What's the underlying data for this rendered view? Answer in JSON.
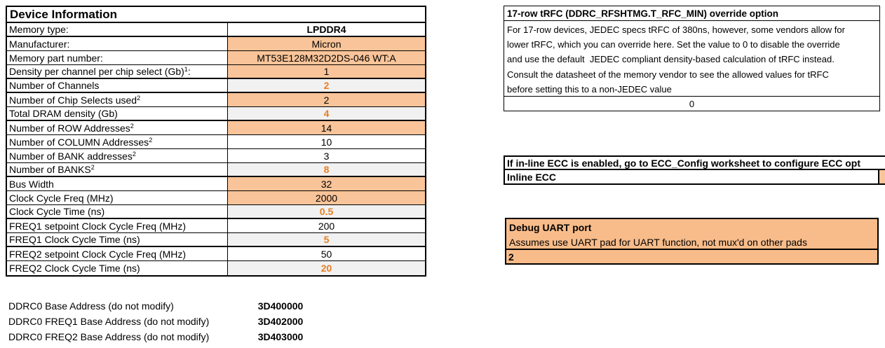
{
  "colors": {
    "orange_fill": "#F9C499",
    "orange_fill_deep": "#F8BC8A",
    "gray_fill": "#F1F1F1",
    "orange_text": "#E87E22",
    "border": "#000000"
  },
  "device_table": {
    "title": "Device Information",
    "rows": [
      {
        "label": "Memory type:",
        "value": "LPDDR4",
        "bg": "white",
        "style": "bold",
        "thick": true
      },
      {
        "label": "Manufacturer:",
        "value": "Micron",
        "bg": "orange",
        "style": "normal",
        "thick": false
      },
      {
        "label": "Memory part number:",
        "value": "MT53E128M32D2DS-046 WT:A",
        "bg": "orange",
        "style": "normal",
        "thick": false
      },
      {
        "label": "Density per channel per chip select (Gb)",
        "sup": "1",
        "suffix": ":",
        "value": "1",
        "bg": "orange",
        "style": "normal",
        "thick": true
      },
      {
        "label": "Number of Channels",
        "value": "2",
        "bg": "gray",
        "style": "orange-bold",
        "thick": true
      },
      {
        "label": "Number of Chip Selects used",
        "sup": "2",
        "value": "2",
        "bg": "orange",
        "style": "normal",
        "thick": false
      },
      {
        "label": "Total DRAM density (Gb)",
        "value": "4",
        "bg": "gray",
        "style": "orange-bold",
        "thick": true
      },
      {
        "label": "Number of ROW Addresses",
        "sup": "2",
        "value": "14",
        "bg": "orange",
        "style": "normal",
        "thick": false
      },
      {
        "label": "Number of COLUMN Addresses",
        "sup": "2",
        "value": "10",
        "bg": "white",
        "style": "normal",
        "thick": false
      },
      {
        "label": "Number of BANK addresses",
        "sup": "2",
        "value": "3",
        "bg": "white",
        "style": "normal",
        "thick": false
      },
      {
        "label": "Number of BANKS",
        "sup": "2",
        "value": "8",
        "bg": "gray",
        "style": "orange-bold",
        "thick": true
      },
      {
        "label": "Bus Width",
        "value": "32",
        "bg": "orange",
        "style": "normal",
        "thick": false
      },
      {
        "label": "Clock Cycle Freq (MHz)",
        "value": "2000",
        "bg": "orange",
        "style": "normal",
        "thick": false
      },
      {
        "label": "Clock Cycle Time (ns)",
        "value": "0.5",
        "bg": "gray",
        "style": "orange-bold",
        "thick": true
      },
      {
        "label": "FREQ1 setpoint Clock Cycle Freq (MHz)",
        "value": "200",
        "bg": "white",
        "style": "normal",
        "thick": false
      },
      {
        "label": "FREQ1 Clock Cycle Time (ns)",
        "value": "5",
        "bg": "gray",
        "style": "orange-bold",
        "thick": true
      },
      {
        "label": "FREQ2 setpoint Clock Cycle Freq (MHz)",
        "value": "50",
        "bg": "white",
        "style": "normal",
        "thick": false
      },
      {
        "label": "FREQ2 Clock Cycle Time (ns)",
        "value": "20",
        "bg": "gray",
        "style": "orange-bold",
        "thick": true
      }
    ]
  },
  "base_addresses": [
    {
      "label": "DDRC0 Base Address (do not modify)",
      "value": "3D400000"
    },
    {
      "label": "DDRC0 FREQ1 Base Address (do not modify)",
      "value": "3D402000"
    },
    {
      "label": "DDRC0 FREQ2 Base Address (do not modify)",
      "value": "3D403000"
    }
  ],
  "trfc_panel": {
    "title": "17-row tRFC (DDRC_RFSHTMG.T_RFC_MIN) override option",
    "lines": [
      "For 17-row devices, JEDEC specs tRFC of 380ns, however, some vendors allow for",
      "lower tRFC, which you can override here. Set the value to 0 to disable the override",
      "and use the default  JEDEC compliant density-based calculation of tRFC instead.",
      "Consult the datasheet of the memory vendor to see the allowed values for tRFC",
      "before setting this to a non-JEDEC value"
    ],
    "value": "0"
  },
  "ecc_panel": {
    "title": "If in-line ECC is enabled, go to ECC_Config worksheet to configure ECC opt",
    "row_label": "Inline ECC"
  },
  "uart_panel": {
    "title": "Debug UART port",
    "description": "Assumes use UART pad for UART function, not mux'd on other pads",
    "value": "2"
  }
}
